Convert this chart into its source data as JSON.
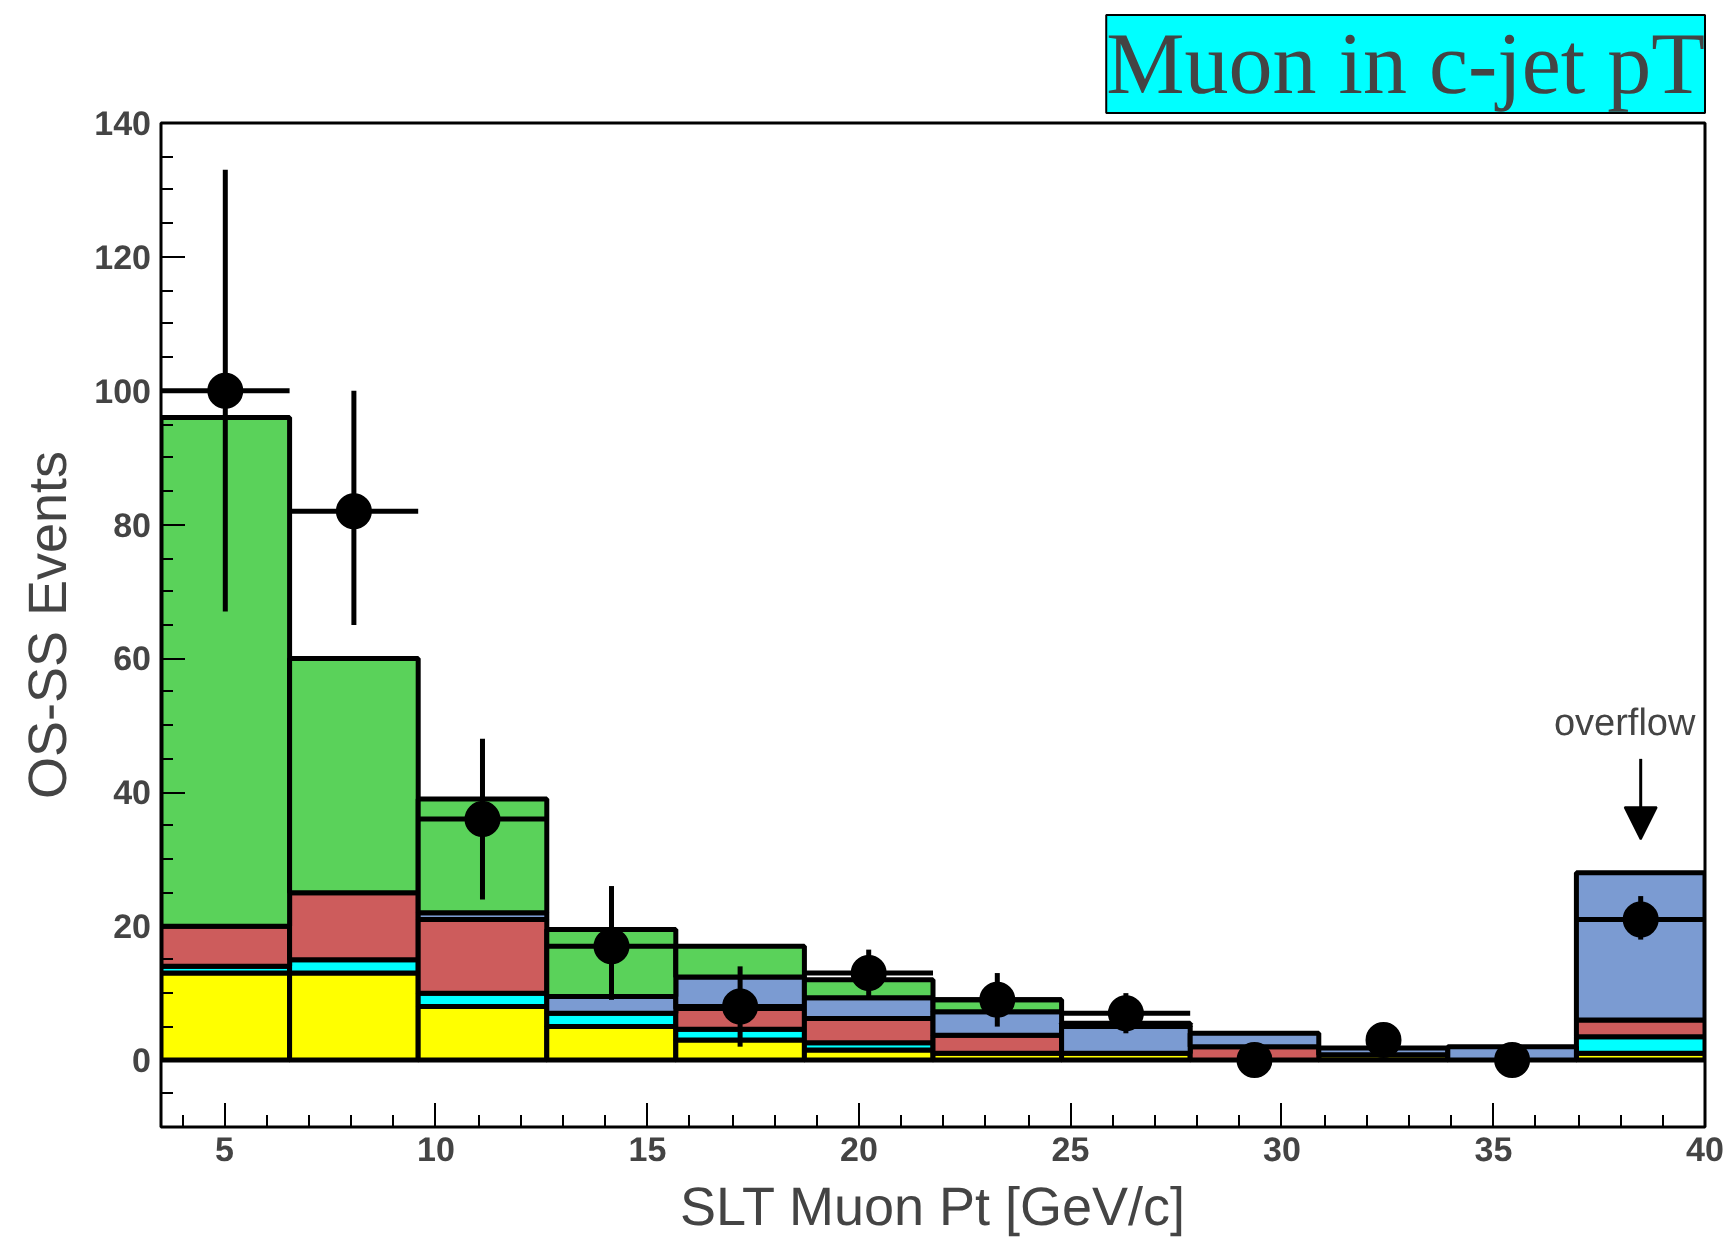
{
  "chart_data": {
    "type": "bar",
    "title": "Muon in c-jet pT",
    "xlabel": "SLT Muon Pt [GeV/c]",
    "ylabel": "OS-SS Events",
    "x": [
      5.02,
      8.06,
      11.1,
      14.15,
      17.19,
      20.23,
      23.27,
      26.31,
      29.35,
      32.4,
      35.44,
      38.48
    ],
    "stacked": true,
    "series": [
      {
        "color": "#ffff00",
        "values": [
          13,
          13,
          8,
          5,
          3,
          1.5,
          1,
          1,
          null,
          0.8,
          null,
          1
        ]
      },
      {
        "color": "#00ffff",
        "values": [
          1,
          2,
          2,
          2,
          1.6,
          1.1,
          0,
          0,
          0,
          0,
          null,
          2.5
        ]
      },
      {
        "color": "#cd5c5c",
        "values": [
          6,
          10,
          11,
          null,
          3.1,
          3.6,
          2.7,
          0,
          2,
          null,
          0,
          2.5
        ]
      },
      {
        "color": "#7b9bd2",
        "values": [
          0,
          0,
          1,
          2.5,
          4.7,
          3.1,
          3.5,
          4,
          2,
          1,
          2,
          22
        ]
      },
      {
        "color": "#5ad25a",
        "values": [
          76,
          35,
          17,
          10,
          4.6,
          2.7,
          1.8,
          0.5,
          0,
          0,
          0,
          0
        ]
      },
      {
        "type": "scatter",
        "color": "#000000",
        "x": [
          5.02,
          8.06,
          11.1,
          14.15,
          17.19,
          20.23,
          23.27,
          26.31,
          29.35,
          32.4,
          35.44,
          38.48
        ],
        "values": [
          100,
          82,
          36,
          17,
          8,
          13,
          9,
          7,
          0,
          3,
          0,
          21
        ],
        "errors": [
          [
            67,
            133
          ],
          [
            65,
            100
          ],
          [
            24,
            48
          ],
          [
            9,
            26
          ],
          [
            2,
            14
          ],
          [
            9,
            16.5
          ],
          [
            5,
            13
          ],
          [
            4,
            10
          ],
          null,
          null,
          null,
          [
            18,
            24.5
          ]
        ],
        "xerrors": [
          1.52,
          1.52,
          1.52,
          1.52,
          1.52,
          1.52,
          1.52,
          1.52,
          null,
          null,
          null,
          1.52
        ]
      }
    ],
    "marker": "circle",
    "xlim": [
      3.5,
      40
    ],
    "xticks": [
      5,
      10,
      15,
      20,
      25,
      30,
      35,
      40
    ],
    "ylim": [
      -10,
      140
    ],
    "yticks": [
      0,
      20,
      40,
      60,
      80,
      100,
      120,
      140
    ],
    "grid": false,
    "annotations": [
      "overflow"
    ]
  }
}
